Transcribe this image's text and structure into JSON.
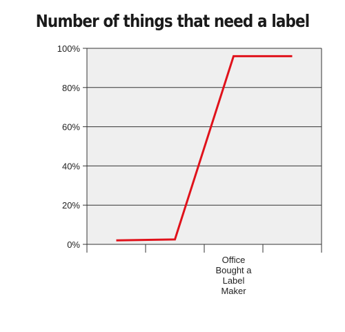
{
  "chart_data": {
    "type": "line",
    "title": "Number of things that need a label",
    "xlabel": "",
    "ylabel": "",
    "ylim": [
      0,
      100
    ],
    "yticks": [
      {
        "value": 0,
        "label": "0%"
      },
      {
        "value": 20,
        "label": "20%"
      },
      {
        "value": 40,
        "label": "40%"
      },
      {
        "value": 60,
        "label": "60%"
      },
      {
        "value": 80,
        "label": "80%"
      },
      {
        "value": 100,
        "label": "100%"
      }
    ],
    "xlim": [
      0,
      4
    ],
    "xticks": [
      0,
      1,
      2,
      3,
      4
    ],
    "annotation": {
      "x": 2.5,
      "lines": [
        "Office",
        "Bought a",
        "Label",
        "Maker"
      ]
    },
    "series": [
      {
        "color": "#e0121b",
        "points": [
          [
            0.5,
            2
          ],
          [
            1.5,
            2.5
          ],
          [
            2.5,
            96
          ],
          [
            3.5,
            96
          ]
        ]
      }
    ],
    "grid": true,
    "background": "#efefef",
    "gridline_color": "#333333"
  }
}
